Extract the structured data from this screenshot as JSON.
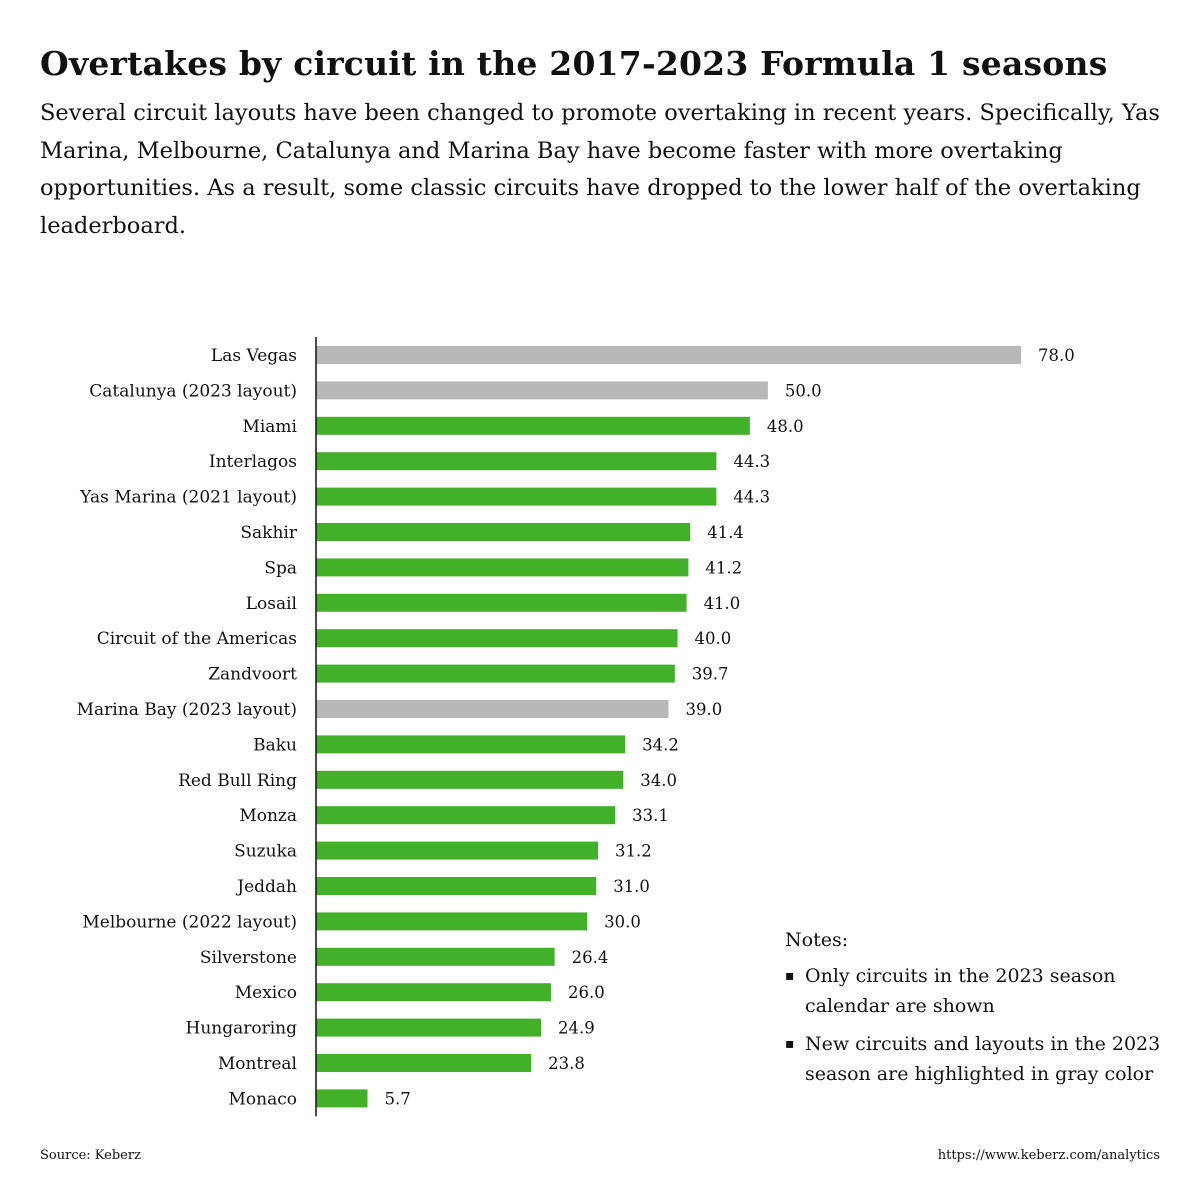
{
  "header": {
    "title": "Overtakes by circuit in the 2017-2023 Formula 1 seasons",
    "subtitle": "Several circuit layouts have been changed to promote overtaking in recent years. Specifically, Yas Marina, Melbourne, Catalunya and Marina Bay have become faster with more overtaking opportunities. As a result, some classic circuits have dropped to the lower half of the overtaking leaderboard."
  },
  "colors": {
    "highlight": "#b8b8b8",
    "default": "#43b02a",
    "axis": "#111111"
  },
  "chart_data": {
    "type": "bar",
    "orientation": "horizontal",
    "title": "Overtakes by circuit in the 2017-2023 Formula 1 seasons",
    "xlabel": "",
    "ylabel": "",
    "xlim": [
      0,
      78
    ],
    "grid": false,
    "categories": [
      "Las Vegas",
      "Catalunya (2023 layout)",
      "Miami",
      "Interlagos",
      "Yas Marina (2021 layout)",
      "Sakhir",
      "Spa",
      "Losail",
      "Circuit of the Americas",
      "Zandvoort",
      "Marina Bay (2023 layout)",
      "Baku",
      "Red Bull Ring",
      "Monza",
      "Suzuka",
      "Jeddah",
      "Melbourne (2022 layout)",
      "Silverstone",
      "Mexico",
      "Hungaroring",
      "Montreal",
      "Monaco"
    ],
    "values": [
      78.0,
      50.0,
      48.0,
      44.3,
      44.3,
      41.4,
      41.2,
      41.0,
      40.0,
      39.7,
      39.0,
      34.2,
      34.0,
      33.1,
      31.2,
      31.0,
      30.0,
      26.4,
      26.0,
      24.9,
      23.8,
      5.7
    ],
    "value_labels": [
      "78.0",
      "50.0",
      "48.0",
      "44.3",
      "44.3",
      "41.4",
      "41.2",
      "41.0",
      "40.0",
      "39.7",
      "39.0",
      "34.2",
      "34.0",
      "33.1",
      "31.2",
      "31.0",
      "30.0",
      "26.4",
      "26.0",
      "24.9",
      "23.8",
      "5.7"
    ],
    "highlighted": [
      true,
      true,
      false,
      false,
      false,
      false,
      false,
      false,
      false,
      false,
      true,
      false,
      false,
      false,
      false,
      false,
      false,
      false,
      false,
      false,
      false,
      false
    ]
  },
  "notes": {
    "title": "Notes:",
    "items": [
      "Only circuits in the 2023 season calendar are shown",
      "New circuits and layouts in the 2023 season are highlighted in gray color"
    ]
  },
  "footer": {
    "source": "Source: Keberz",
    "url": "https://www.keberz.com/analytics"
  }
}
